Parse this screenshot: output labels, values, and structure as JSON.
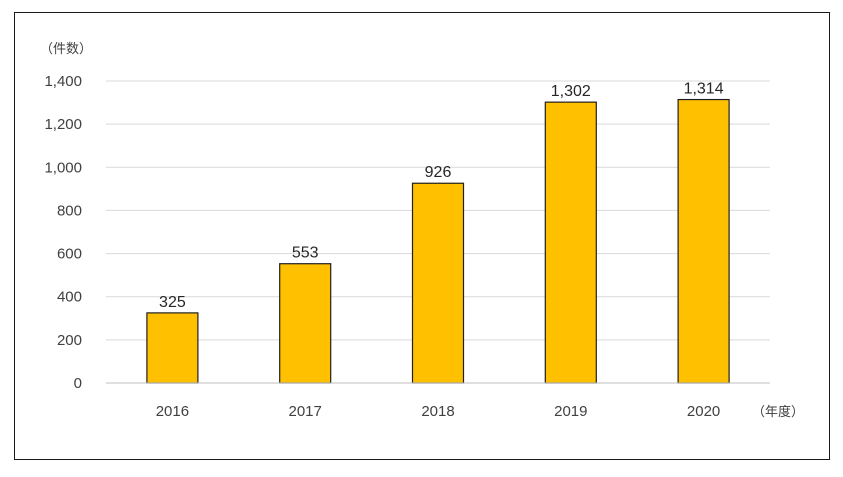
{
  "chart_data": {
    "type": "bar",
    "categories": [
      "2016",
      "2017",
      "2018",
      "2019",
      "2020"
    ],
    "values": [
      325,
      553,
      926,
      1302,
      1314
    ],
    "data_labels": [
      "325",
      "553",
      "926",
      "1,302",
      "1,314"
    ],
    "y_unit_label": "（件数）",
    "x_unit_label": "（年度）",
    "ylim": [
      0,
      1400
    ],
    "yticks": [
      0,
      200,
      400,
      600,
      800,
      1000,
      1200,
      1400
    ],
    "ytick_labels": [
      "0",
      "200",
      "400",
      "600",
      "800",
      "1,000",
      "1,200",
      "1,400"
    ],
    "grid": true,
    "legend": "none",
    "bar_color": "#FFC000",
    "bar_edge_color": "#1f1f1f",
    "grid_color": "#d9d9d9"
  }
}
